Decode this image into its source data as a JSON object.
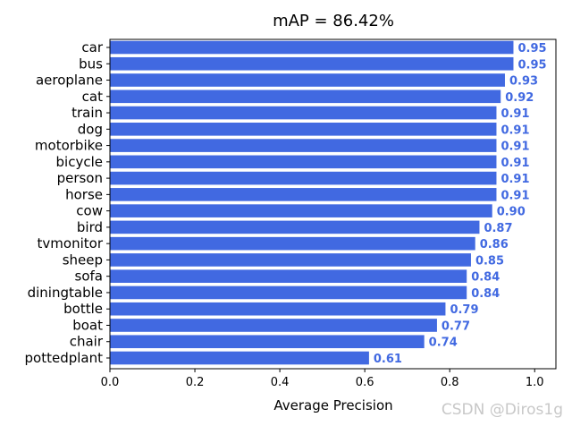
{
  "chart_data": {
    "type": "bar",
    "orientation": "horizontal",
    "title": "mAP = 86.42%",
    "xlabel": "Average Precision",
    "ylabel": "",
    "xlim": [
      0,
      1.05
    ],
    "xticks": [
      "0.0",
      "0.2",
      "0.4",
      "0.6",
      "0.8",
      "1.0"
    ],
    "grid": false,
    "bar_color": "#4169E1",
    "label_color": "#4169E1",
    "categories": [
      "car",
      "bus",
      "aeroplane",
      "cat",
      "train",
      "dog",
      "motorbike",
      "bicycle",
      "person",
      "horse",
      "cow",
      "bird",
      "tvmonitor",
      "sheep",
      "sofa",
      "diningtable",
      "bottle",
      "boat",
      "chair",
      "pottedplant"
    ],
    "values": [
      0.95,
      0.95,
      0.93,
      0.92,
      0.91,
      0.91,
      0.91,
      0.91,
      0.91,
      0.91,
      0.9,
      0.87,
      0.86,
      0.85,
      0.84,
      0.84,
      0.79,
      0.77,
      0.74,
      0.61
    ],
    "value_labels": [
      "0.95",
      "0.95",
      "0.93",
      "0.92",
      "0.91",
      "0.91",
      "0.91",
      "0.91",
      "0.91",
      "0.91",
      "0.90",
      "0.87",
      "0.86",
      "0.85",
      "0.84",
      "0.84",
      "0.79",
      "0.77",
      "0.74",
      "0.61"
    ]
  },
  "watermark": "CSDN @Diros1g"
}
